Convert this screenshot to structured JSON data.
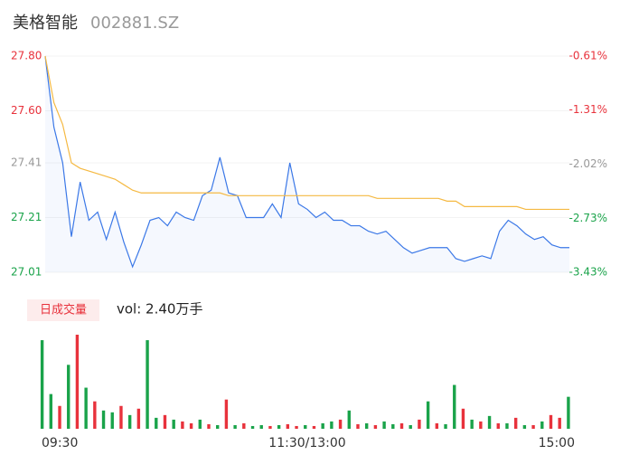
{
  "header": {
    "name": "美格智能",
    "code": "002881.SZ"
  },
  "chart_data": {
    "type": "line",
    "x": [
      0,
      4,
      8,
      12,
      16,
      20,
      24,
      28,
      32,
      36,
      40,
      44,
      48,
      52,
      56,
      60,
      64,
      68,
      72,
      76,
      80,
      84,
      88,
      92,
      96,
      100,
      104,
      108,
      112,
      116,
      120,
      124,
      128,
      132,
      136,
      140,
      144,
      148,
      152,
      156,
      160,
      164,
      168,
      172,
      176,
      180,
      184,
      188,
      192,
      196,
      200,
      204,
      208,
      212,
      216,
      220,
      224,
      228,
      232,
      236,
      240
    ],
    "xlim": [
      0,
      240
    ],
    "xticks": [
      {
        "value": 0,
        "label": "09:30"
      },
      {
        "value": 120,
        "label": "11:30/13:00"
      },
      {
        "value": 240,
        "label": "15:00"
      }
    ],
    "ylim": [
      27.01,
      27.8
    ],
    "yticks": [
      {
        "value": 27.01,
        "label": "27.01"
      },
      27.21,
      27.41,
      {
        "value": 27.6,
        "label": "27.60"
      },
      {
        "value": 27.8,
        "label": "27.80"
      }
    ],
    "y2lim": [
      -3.43,
      -0.61
    ],
    "y2ticks": [
      {
        "value": -3.43,
        "label": "-3.43%"
      },
      {
        "value": -2.73,
        "label": "-2.73%"
      },
      {
        "value": -2.02,
        "label": "-2.02%"
      },
      {
        "value": -1.31,
        "label": "-1.31%"
      },
      {
        "value": -0.61,
        "label": "-0.61%"
      }
    ],
    "series": [
      {
        "color": "#3b78e7",
        "values": [
          27.8,
          27.54,
          27.41,
          27.14,
          27.34,
          27.2,
          27.23,
          27.13,
          27.23,
          27.12,
          27.03,
          27.11,
          27.2,
          27.21,
          27.18,
          27.23,
          27.21,
          27.2,
          27.29,
          27.31,
          27.43,
          27.3,
          27.29,
          27.21,
          27.21,
          27.21,
          27.26,
          27.21,
          27.41,
          27.26,
          27.24,
          27.21,
          27.23,
          27.2,
          27.2,
          27.18,
          27.18,
          27.16,
          27.15,
          27.16,
          27.13,
          27.1,
          27.08,
          27.09,
          27.1,
          27.1,
          27.1,
          27.06,
          27.05,
          27.06,
          27.07,
          27.06,
          27.16,
          27.2,
          27.18,
          27.15,
          27.13,
          27.14,
          27.11,
          27.1,
          27.1
        ]
      },
      {
        "color": "#f5b942",
        "values": [
          27.8,
          27.63,
          27.55,
          27.41,
          27.39,
          27.38,
          27.37,
          27.36,
          27.35,
          27.33,
          27.31,
          27.3,
          27.3,
          27.3,
          27.3,
          27.3,
          27.3,
          27.3,
          27.3,
          27.3,
          27.3,
          27.29,
          27.29,
          27.29,
          27.29,
          27.29,
          27.29,
          27.29,
          27.29,
          27.29,
          27.29,
          27.29,
          27.29,
          27.29,
          27.29,
          27.29,
          27.29,
          27.29,
          27.28,
          27.28,
          27.28,
          27.28,
          27.28,
          27.28,
          27.28,
          27.28,
          27.27,
          27.27,
          27.25,
          27.25,
          27.25,
          27.25,
          27.25,
          27.25,
          27.25,
          27.24,
          27.24,
          27.24,
          27.24,
          27.24,
          27.24
        ]
      }
    ],
    "volume": {
      "badge": "日成交量",
      "label": "vol: 2.40万手",
      "values": [
        97,
        38,
        25,
        70,
        103,
        45,
        30,
        20,
        18,
        25,
        15,
        22,
        97,
        12,
        15,
        10,
        8,
        6,
        10,
        5,
        4,
        32,
        4,
        6,
        3,
        4,
        3,
        4,
        5,
        3,
        4,
        3,
        6,
        8,
        10,
        20,
        5,
        6,
        4,
        8,
        5,
        6,
        4,
        10,
        30,
        6,
        5,
        48,
        22,
        10,
        8,
        14,
        6,
        6,
        12,
        4,
        4,
        8,
        15,
        12,
        35
      ],
      "colors": [
        "#1aa34a",
        "#1aa34a",
        "#e8323c",
        "#1aa34a",
        "#e8323c",
        "#1aa34a",
        "#e8323c",
        "#1aa34a",
        "#1aa34a",
        "#e8323c",
        "#1aa34a",
        "#e8323c",
        "#1aa34a",
        "#1aa34a",
        "#e8323c",
        "#1aa34a",
        "#e8323c",
        "#e8323c",
        "#1aa34a",
        "#e8323c",
        "#1aa34a",
        "#e8323c",
        "#1aa34a",
        "#e8323c",
        "#1aa34a",
        "#1aa34a",
        "#e8323c",
        "#1aa34a",
        "#e8323c",
        "#e8323c",
        "#1aa34a",
        "#e8323c",
        "#1aa34a",
        "#1aa34a",
        "#e8323c",
        "#1aa34a",
        "#e8323c",
        "#1aa34a",
        "#e8323c",
        "#1aa34a",
        "#1aa34a",
        "#e8323c",
        "#1aa34a",
        "#e8323c",
        "#1aa34a",
        "#e8323c",
        "#1aa34a",
        "#1aa34a",
        "#e8323c",
        "#1aa34a",
        "#e8323c",
        "#1aa34a",
        "#e8323c",
        "#1aa34a",
        "#e8323c",
        "#1aa34a",
        "#e8323c",
        "#1aa34a",
        "#e8323c",
        "#e8323c",
        "#1aa34a"
      ]
    }
  }
}
